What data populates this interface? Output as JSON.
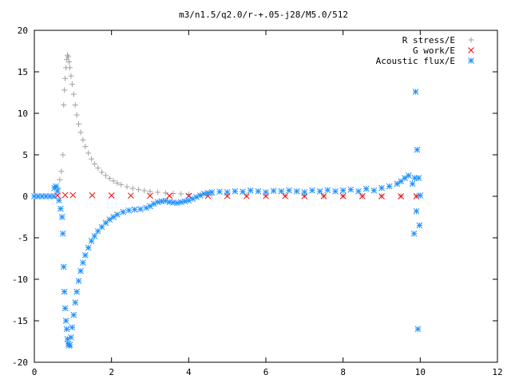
{
  "chart_data": {
    "type": "scatter",
    "title": "m3/n1.5/q2.0/r-+.05-j28/M5.0/512",
    "xlabel": "",
    "ylabel": "",
    "xlim": [
      0,
      12
    ],
    "ylim": [
      -20,
      20
    ],
    "x_ticks": [
      "0",
      "2",
      "4",
      "6",
      "8",
      "10",
      "12"
    ],
    "y_ticks": [
      "20",
      "15",
      "10",
      "5",
      "0",
      "-5",
      "-10",
      "-15",
      "-20"
    ],
    "grid": false,
    "legend_position": "top-right",
    "series": [
      {
        "name": "R stress/E",
        "marker": "plus",
        "color": "#a0a0a0",
        "points": [
          [
            0.62,
            1.0
          ],
          [
            0.66,
            2.0
          ],
          [
            0.7,
            3.0
          ],
          [
            0.74,
            5.0
          ],
          [
            0.76,
            11.0
          ],
          [
            0.78,
            12.8
          ],
          [
            0.8,
            14.2
          ],
          [
            0.82,
            15.5
          ],
          [
            0.84,
            16.5
          ],
          [
            0.86,
            17.0
          ],
          [
            0.88,
            16.8
          ],
          [
            0.9,
            16.2
          ],
          [
            0.92,
            15.5
          ],
          [
            0.95,
            14.5
          ],
          [
            0.98,
            13.5
          ],
          [
            1.02,
            12.3
          ],
          [
            1.06,
            11.0
          ],
          [
            1.1,
            9.8
          ],
          [
            1.15,
            8.7
          ],
          [
            1.2,
            7.7
          ],
          [
            1.26,
            6.8
          ],
          [
            1.32,
            6.0
          ],
          [
            1.4,
            5.2
          ],
          [
            1.48,
            4.5
          ],
          [
            1.56,
            3.9
          ],
          [
            1.65,
            3.4
          ],
          [
            1.75,
            2.9
          ],
          [
            1.85,
            2.5
          ],
          [
            1.95,
            2.15
          ],
          [
            2.05,
            1.85
          ],
          [
            2.15,
            1.6
          ],
          [
            2.25,
            1.4
          ],
          [
            2.4,
            1.15
          ],
          [
            2.55,
            0.95
          ],
          [
            2.7,
            0.8
          ],
          [
            2.85,
            0.68
          ],
          [
            3.0,
            0.58
          ],
          [
            3.2,
            0.48
          ],
          [
            3.4,
            0.4
          ],
          [
            3.6,
            0.34
          ],
          [
            3.8,
            0.29
          ],
          [
            4.0,
            0.25
          ],
          [
            4.3,
            0.2
          ],
          [
            4.6,
            0.17
          ],
          [
            5.0,
            0.14
          ],
          [
            5.5,
            0.11
          ],
          [
            6.0,
            0.09
          ],
          [
            6.5,
            0.07
          ],
          [
            7.0,
            0.06
          ],
          [
            7.5,
            0.05
          ],
          [
            8.0,
            0.04
          ],
          [
            8.5,
            0.04
          ],
          [
            9.0,
            0.03
          ],
          [
            9.5,
            0.03
          ],
          [
            9.9,
            0.02
          ]
        ]
      },
      {
        "name": "G work/E",
        "marker": "cross",
        "color": "#ff0000",
        "points": [
          [
            0.6,
            0.1
          ],
          [
            0.8,
            0.15
          ],
          [
            1.0,
            0.14
          ],
          [
            1.5,
            0.12
          ],
          [
            2.0,
            0.1
          ],
          [
            2.5,
            0.08
          ],
          [
            3.0,
            0.07
          ],
          [
            3.5,
            0.06
          ],
          [
            4.0,
            0.05
          ],
          [
            4.5,
            0.04
          ],
          [
            5.0,
            0.03
          ],
          [
            5.5,
            0.02
          ],
          [
            6.0,
            0.02
          ],
          [
            6.5,
            0.02
          ],
          [
            7.0,
            0.01
          ],
          [
            7.5,
            0.01
          ],
          [
            8.0,
            0.01
          ],
          [
            8.5,
            0.01
          ],
          [
            9.0,
            0.0
          ],
          [
            9.5,
            0.0
          ],
          [
            9.9,
            0.0
          ]
        ]
      },
      {
        "name": "Acoustic flux/E",
        "marker": "star",
        "color": "#1e90ff",
        "points": [
          [
            0.0,
            0.0
          ],
          [
            0.1,
            0.0
          ],
          [
            0.2,
            0.0
          ],
          [
            0.3,
            0.0
          ],
          [
            0.4,
            0.0
          ],
          [
            0.5,
            0.0
          ],
          [
            0.52,
            1.0
          ],
          [
            0.56,
            1.2
          ],
          [
            0.6,
            0.6
          ],
          [
            0.64,
            -0.5
          ],
          [
            0.68,
            -1.5
          ],
          [
            0.72,
            -2.5
          ],
          [
            0.74,
            -4.5
          ],
          [
            0.76,
            -8.5
          ],
          [
            0.78,
            -11.5
          ],
          [
            0.8,
            -13.5
          ],
          [
            0.82,
            -15.0
          ],
          [
            0.84,
            -16.0
          ],
          [
            0.86,
            -17.2
          ],
          [
            0.88,
            -17.8
          ],
          [
            0.9,
            -18.0
          ],
          [
            0.92,
            -17.9
          ],
          [
            0.95,
            -17.0
          ],
          [
            0.98,
            -15.8
          ],
          [
            1.02,
            -14.3
          ],
          [
            1.06,
            -12.8
          ],
          [
            1.1,
            -11.5
          ],
          [
            1.15,
            -10.2
          ],
          [
            1.2,
            -9.0
          ],
          [
            1.26,
            -8.0
          ],
          [
            1.32,
            -7.1
          ],
          [
            1.4,
            -6.2
          ],
          [
            1.48,
            -5.4
          ],
          [
            1.56,
            -4.8
          ],
          [
            1.65,
            -4.2
          ],
          [
            1.75,
            -3.7
          ],
          [
            1.85,
            -3.2
          ],
          [
            1.95,
            -2.8
          ],
          [
            2.05,
            -2.5
          ],
          [
            2.15,
            -2.2
          ],
          [
            2.3,
            -1.9
          ],
          [
            2.45,
            -1.7
          ],
          [
            2.6,
            -1.6
          ],
          [
            2.75,
            -1.55
          ],
          [
            2.9,
            -1.4
          ],
          [
            3.0,
            -1.2
          ],
          [
            3.1,
            -0.9
          ],
          [
            3.2,
            -0.7
          ],
          [
            3.3,
            -0.6
          ],
          [
            3.4,
            -0.55
          ],
          [
            3.5,
            -0.7
          ],
          [
            3.6,
            -0.75
          ],
          [
            3.7,
            -0.8
          ],
          [
            3.8,
            -0.7
          ],
          [
            3.9,
            -0.6
          ],
          [
            4.0,
            -0.5
          ],
          [
            4.1,
            -0.3
          ],
          [
            4.2,
            -0.1
          ],
          [
            4.3,
            0.1
          ],
          [
            4.4,
            0.3
          ],
          [
            4.5,
            0.4
          ],
          [
            4.6,
            0.5
          ],
          [
            4.8,
            0.55
          ],
          [
            5.0,
            0.5
          ],
          [
            5.2,
            0.6
          ],
          [
            5.4,
            0.55
          ],
          [
            5.6,
            0.7
          ],
          [
            5.8,
            0.6
          ],
          [
            6.0,
            0.5
          ],
          [
            6.2,
            0.65
          ],
          [
            6.4,
            0.6
          ],
          [
            6.6,
            0.7
          ],
          [
            6.8,
            0.6
          ],
          [
            7.0,
            0.5
          ],
          [
            7.2,
            0.7
          ],
          [
            7.4,
            0.6
          ],
          [
            7.6,
            0.75
          ],
          [
            7.8,
            0.6
          ],
          [
            8.0,
            0.7
          ],
          [
            8.2,
            0.8
          ],
          [
            8.4,
            0.6
          ],
          [
            8.6,
            0.9
          ],
          [
            8.8,
            0.7
          ],
          [
            9.0,
            1.0
          ],
          [
            9.2,
            1.2
          ],
          [
            9.4,
            1.5
          ],
          [
            9.5,
            1.8
          ],
          [
            9.6,
            2.2
          ],
          [
            9.7,
            2.5
          ],
          [
            9.8,
            1.5
          ],
          [
            9.84,
            -4.5
          ],
          [
            9.86,
            2.2
          ],
          [
            9.88,
            12.6
          ],
          [
            9.9,
            -1.8
          ],
          [
            9.92,
            5.6
          ],
          [
            9.94,
            -16.0
          ],
          [
            9.96,
            2.2
          ],
          [
            9.98,
            -3.5
          ],
          [
            10.0,
            0.1
          ]
        ]
      }
    ]
  }
}
